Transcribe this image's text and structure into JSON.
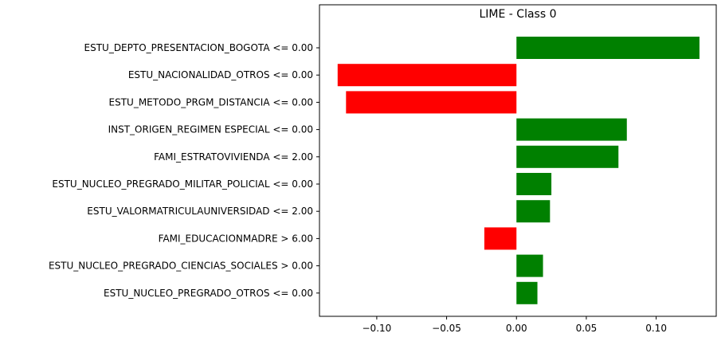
{
  "chart_data": {
    "type": "bar",
    "orientation": "horizontal",
    "title": "LIME - Class 0",
    "xlabel": "",
    "ylabel": "",
    "xlim": [
      -0.141,
      0.143
    ],
    "xticks": [
      -0.1,
      -0.05,
      0.0,
      0.05,
      0.1
    ],
    "xtick_labels": [
      "−0.10",
      "−0.05",
      "0.00",
      "0.05",
      "0.10"
    ],
    "grid": false,
    "categories": [
      "ESTU_DEPTO_PRESENTACION_BOGOTA <= 0.00",
      "ESTU_NACIONALIDAD_OTROS <= 0.00",
      "ESTU_METODO_PRGM_DISTANCIA <= 0.00",
      "INST_ORIGEN_REGIMEN ESPECIAL <= 0.00",
      "FAMI_ESTRATOVIVIENDA <= 2.00",
      "ESTU_NUCLEO_PREGRADO_MILITAR_POLICIAL <= 0.00",
      "ESTU_VALORMATRICULAUNIVERSIDAD <= 2.00",
      "FAMI_EDUCACIONMADRE > 6.00",
      "ESTU_NUCLEO_PREGRADO_CIENCIAS_SOCIALES > 0.00",
      "ESTU_NUCLEO_PREGRADO_OTROS <= 0.00"
    ],
    "values": [
      0.131,
      -0.128,
      -0.122,
      0.079,
      0.073,
      0.025,
      0.024,
      -0.023,
      0.019,
      0.015
    ],
    "colors": {
      "positive": "#008000",
      "negative": "#ff0000"
    }
  }
}
